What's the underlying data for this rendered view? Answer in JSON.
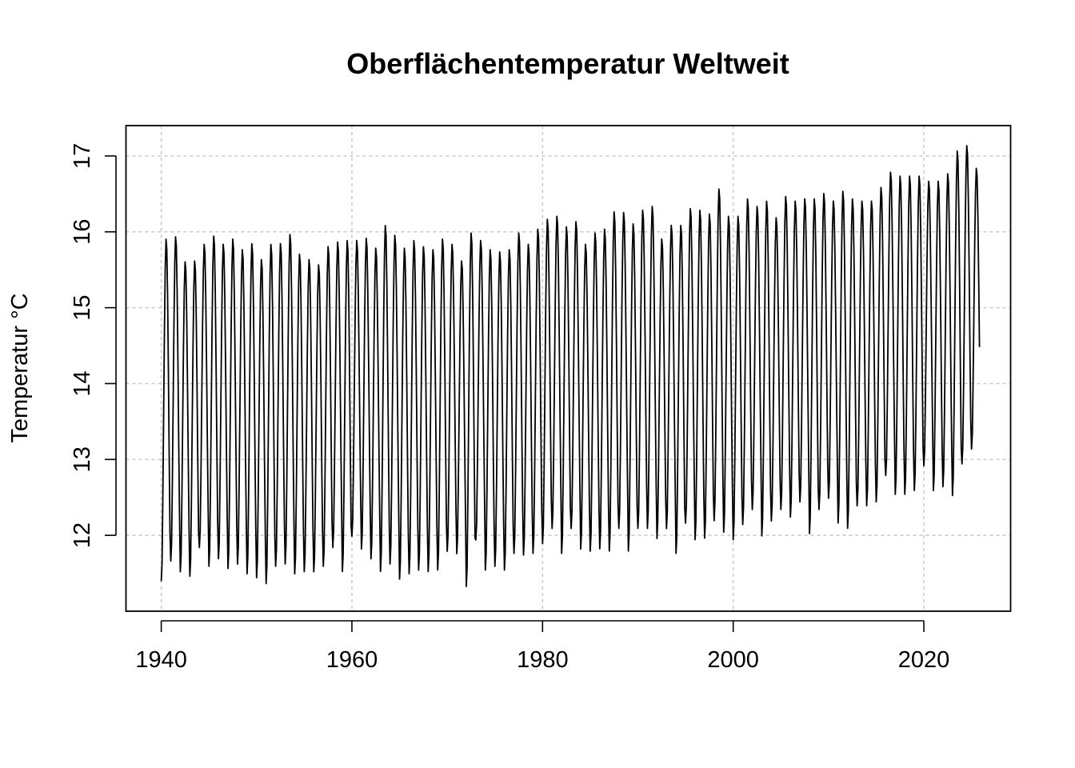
{
  "chart_data": {
    "type": "line",
    "title": "Oberflächentemperatur Weltweit",
    "xlabel": "",
    "ylabel": "Temperatur °C",
    "xlim": [
      1936.3,
      2029.1
    ],
    "ylim": [
      11.0,
      17.4
    ],
    "x_ticks": [
      1940,
      1960,
      1980,
      2000,
      2020
    ],
    "x_tick_labels": [
      "1940",
      "1960",
      "1980",
      "2000",
      "2020"
    ],
    "y_ticks": [
      12,
      13,
      14,
      15,
      16,
      17
    ],
    "y_tick_labels": [
      "12",
      "13",
      "14",
      "15",
      "16",
      "17"
    ],
    "grid": true,
    "series": [
      {
        "resolution": "monthly (12 values per year)",
        "x_start": 1940.0,
        "x_end": 2025.9,
        "years": [
          1940,
          1941,
          1942,
          1943,
          1944,
          1945,
          1946,
          1947,
          1948,
          1949,
          1950,
          1951,
          1952,
          1953,
          1954,
          1955,
          1956,
          1957,
          1958,
          1959,
          1960,
          1961,
          1962,
          1963,
          1964,
          1965,
          1966,
          1967,
          1968,
          1969,
          1970,
          1971,
          1972,
          1973,
          1974,
          1975,
          1976,
          1977,
          1978,
          1979,
          1980,
          1981,
          1982,
          1983,
          1984,
          1985,
          1986,
          1987,
          1988,
          1989,
          1990,
          1991,
          1992,
          1993,
          1994,
          1995,
          1996,
          1997,
          1998,
          1999,
          2000,
          2001,
          2002,
          2003,
          2004,
          2005,
          2006,
          2007,
          2008,
          2009,
          2010,
          2011,
          2012,
          2013,
          2014,
          2015,
          2016,
          2017,
          2018,
          2019,
          2020,
          2021,
          2022,
          2023,
          2024,
          2025
        ],
        "annual_max": [
          15.92,
          15.95,
          15.62,
          15.63,
          15.85,
          15.96,
          15.85,
          15.92,
          15.78,
          15.86,
          15.65,
          15.85,
          15.86,
          15.98,
          15.72,
          15.65,
          15.58,
          15.82,
          15.88,
          15.9,
          15.9,
          15.93,
          15.8,
          16.1,
          15.97,
          15.8,
          15.9,
          15.82,
          15.78,
          15.92,
          15.85,
          15.63,
          16.0,
          15.9,
          15.78,
          15.75,
          15.78,
          16.0,
          15.85,
          16.05,
          16.18,
          16.22,
          16.08,
          16.15,
          15.85,
          16.0,
          16.05,
          16.28,
          16.27,
          16.12,
          16.3,
          16.35,
          15.92,
          16.1,
          16.1,
          16.32,
          16.3,
          16.25,
          16.58,
          16.22,
          16.22,
          16.45,
          16.35,
          16.42,
          16.2,
          16.48,
          16.42,
          16.45,
          16.45,
          16.52,
          16.42,
          16.55,
          16.45,
          16.42,
          16.42,
          16.6,
          16.8,
          16.75,
          16.75,
          16.75,
          16.68,
          16.68,
          16.78,
          17.08,
          17.15,
          16.85
        ],
        "annual_min": [
          11.35,
          11.62,
          11.48,
          11.42,
          11.8,
          11.55,
          11.65,
          11.52,
          11.58,
          11.45,
          11.4,
          11.32,
          11.55,
          11.58,
          11.45,
          11.48,
          11.48,
          11.55,
          11.8,
          11.48,
          11.95,
          11.78,
          11.65,
          11.48,
          11.58,
          11.38,
          11.45,
          11.5,
          11.48,
          11.5,
          11.75,
          11.72,
          11.28,
          11.9,
          11.5,
          11.55,
          11.5,
          11.72,
          11.7,
          11.72,
          11.85,
          12.05,
          11.72,
          12.05,
          11.78,
          11.75,
          11.78,
          11.75,
          12.05,
          11.75,
          12.05,
          12.05,
          11.92,
          12.05,
          11.72,
          12.12,
          11.9,
          11.92,
          12.15,
          12.0,
          11.9,
          12.1,
          12.3,
          11.95,
          12.15,
          12.3,
          12.2,
          12.4,
          11.98,
          12.3,
          12.45,
          12.12,
          12.05,
          12.35,
          12.35,
          12.4,
          12.75,
          12.5,
          12.5,
          12.55,
          12.88,
          12.55,
          12.6,
          12.48,
          12.9,
          13.1
        ]
      }
    ]
  }
}
